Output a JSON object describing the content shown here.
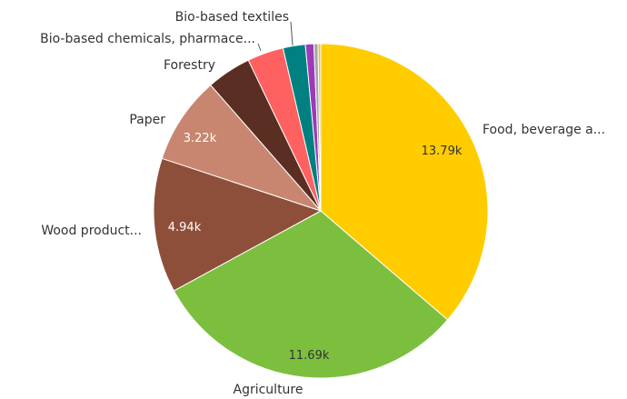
{
  "chart_data": {
    "type": "pie",
    "start_angle_deg": 0,
    "direction": "clockwise",
    "slices": [
      {
        "label": "Food, beverage a...",
        "value": 13790,
        "value_label": "13.79k",
        "color": "#FFCC00",
        "value_color": "#333333"
      },
      {
        "label": "Agriculture",
        "value": 11690,
        "value_label": "11.69k",
        "color": "#7CBF3F",
        "value_color": "#333333"
      },
      {
        "label": "Wood product...",
        "value": 4940,
        "value_label": "4.94k",
        "color": "#8E4F3A",
        "value_color": "#FFFFFF"
      },
      {
        "label": "Paper",
        "value": 3220,
        "value_label": "3.22k",
        "color": "#C88670",
        "value_color": "#FFFFFF"
      },
      {
        "label": "Forestry",
        "value": 1640,
        "value_label": "",
        "color": "#5A2E22"
      },
      {
        "label": "Bio-based chemicals, pharmace...",
        "value": 1330,
        "value_label": "",
        "color": "#FF6161"
      },
      {
        "label": "Bio-based textiles",
        "value": 820,
        "value_label": "",
        "color": "#008080"
      },
      {
        "label": "",
        "value": 310,
        "value_label": "",
        "color": "#9B3BB8"
      },
      {
        "label": "",
        "value": 150,
        "value_label": "",
        "color": "#A6A6A6"
      },
      {
        "label": "",
        "value": 100,
        "value_label": "",
        "color": "#E2C25C"
      }
    ]
  }
}
